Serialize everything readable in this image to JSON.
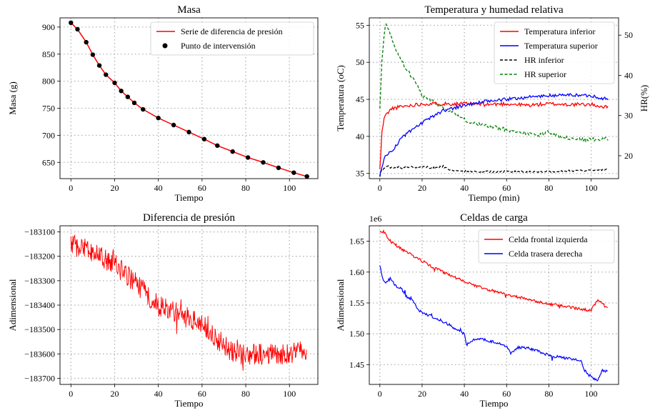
{
  "colors": {
    "red": "#ff0000",
    "blue": "#0000ff",
    "black": "#000000",
    "green": "#008000",
    "grid": "#b0b0b0"
  },
  "chart_data": [
    {
      "id": "masa",
      "type": "line",
      "title": "Masa",
      "xlabel": "Tiempo",
      "ylabel": "Masa (g)",
      "xlim": [
        -5,
        113
      ],
      "ylim": [
        620,
        917
      ],
      "xticks": [
        0,
        20,
        40,
        60,
        80,
        100
      ],
      "yticks": [
        650,
        700,
        750,
        800,
        850,
        900
      ],
      "ytick_labels": [
        "650",
        "700",
        "750",
        "800",
        "850",
        "900"
      ],
      "legend": [
        "Serie de diferencia de presión",
        "Punto de intervensión"
      ],
      "series": [
        {
          "name": "Serie de diferencia de presión",
          "kind": "line",
          "color": "#ff0000",
          "x": [
            0,
            3,
            7,
            10,
            13,
            16,
            20,
            23,
            26,
            29,
            33,
            40,
            47,
            54,
            61,
            67,
            74,
            81,
            88,
            95,
            102,
            108
          ],
          "y": [
            908,
            896,
            872,
            849,
            829,
            812,
            797,
            782,
            771,
            760,
            748,
            732,
            719,
            706,
            693,
            681,
            670,
            659,
            650,
            640,
            631,
            624
          ]
        },
        {
          "name": "Punto de intervensión",
          "kind": "scatter",
          "color": "#000000",
          "x": [
            0,
            3,
            7,
            10,
            13,
            16,
            20,
            23,
            26,
            29,
            33,
            40,
            47,
            54,
            61,
            67,
            74,
            81,
            88,
            95,
            102,
            108
          ],
          "y": [
            908,
            896,
            872,
            849,
            829,
            812,
            797,
            782,
            771,
            760,
            748,
            732,
            719,
            706,
            693,
            681,
            670,
            659,
            650,
            640,
            631,
            624
          ]
        }
      ]
    },
    {
      "id": "temp",
      "type": "line",
      "title": "Temperatura y humedad relativa",
      "xlabel": "Tiempo (min)",
      "ylabel": "Temperatura (oC)",
      "y2label": "HR(%)",
      "xlim": [
        -5,
        113
      ],
      "ylim": [
        34.3,
        56.0
      ],
      "y2lim": [
        14.3,
        54.3
      ],
      "xticks": [
        0,
        20,
        40,
        60,
        80,
        100
      ],
      "yticks": [
        35,
        40,
        45,
        50,
        55
      ],
      "ytick_labels": [
        "35",
        "40",
        "45",
        "50",
        "55"
      ],
      "y2ticks": [
        20,
        30,
        40,
        50
      ],
      "y2tick_labels": [
        "20",
        "30",
        "40",
        "50"
      ],
      "legend": [
        "Temperatura inferior",
        "Temperatura superior",
        "HR inferior",
        "HR superior"
      ],
      "series": [
        {
          "name": "Temperatura inferior",
          "axis": "left",
          "color": "#ff0000",
          "dash": false,
          "x": [
            0,
            1,
            2,
            4,
            6,
            10,
            15,
            20,
            25,
            30,
            40,
            50,
            60,
            70,
            80,
            90,
            100,
            108
          ],
          "y": [
            35.5,
            40.5,
            42.5,
            43.3,
            43.8,
            44.0,
            44.2,
            44.4,
            44.4,
            44.4,
            44.4,
            44.3,
            44.4,
            44.2,
            44.4,
            44.3,
            44.3,
            43.9
          ]
        },
        {
          "name": "Temperatura superior",
          "axis": "left",
          "color": "#0000ff",
          "dash": false,
          "x": [
            0,
            1,
            2,
            4,
            6,
            8,
            10,
            15,
            20,
            25,
            30,
            40,
            50,
            60,
            70,
            80,
            90,
            100,
            108
          ],
          "y": [
            34.6,
            36.0,
            37.0,
            37.7,
            38.2,
            38.8,
            39.8,
            40.8,
            41.8,
            42.7,
            43.5,
            44.2,
            44.7,
            45.0,
            45.3,
            45.5,
            45.6,
            45.5,
            45.0
          ]
        },
        {
          "name": "HR inferior",
          "axis": "right",
          "color": "#000000",
          "dash": true,
          "x": [
            0,
            1,
            2,
            4,
            6,
            8,
            10,
            14,
            18,
            22,
            26,
            30,
            32,
            34,
            40,
            50,
            60,
            70,
            80,
            90,
            100,
            108
          ],
          "y": [
            15,
            16.5,
            16.8,
            17.5,
            16.8,
            17.3,
            16.9,
            17.3,
            17.0,
            17.2,
            16.9,
            17.4,
            16.6,
            16.3,
            16.1,
            16.0,
            16.1,
            16.0,
            16.1,
            16.2,
            16.4,
            16.6
          ]
        },
        {
          "name": "HR superior",
          "axis": "right",
          "color": "#008000",
          "dash": true,
          "x": [
            0,
            1,
            2,
            3,
            5,
            8,
            12,
            16,
            20,
            25,
            30,
            35,
            40,
            45,
            50,
            55,
            60,
            65,
            70,
            75,
            80,
            85,
            90,
            95,
            100,
            105,
            108
          ],
          "y": [
            32,
            44,
            50,
            53,
            50,
            46,
            42,
            39,
            35,
            33.5,
            32,
            30.5,
            29,
            28,
            27.5,
            27,
            26.5,
            26,
            25.5,
            25,
            26,
            24.5,
            24.3,
            24,
            24,
            24.2,
            24.2
          ]
        }
      ]
    },
    {
      "id": "presion",
      "type": "line",
      "title": "Diferencia de presión",
      "xlabel": "Tiempo",
      "ylabel": "Adimensional",
      "xlim": [
        -5,
        113
      ],
      "ylim": [
        -183725,
        -183075
      ],
      "xticks": [
        0,
        20,
        40,
        60,
        80,
        100
      ],
      "yticks": [
        -183700,
        -183600,
        -183500,
        -183400,
        -183300,
        -183200,
        -183100
      ],
      "ytick_labels": [
        "−183700",
        "−183600",
        "−183500",
        "−183400",
        "−183300",
        "−183200",
        "−183100"
      ],
      "trend": {
        "x": [
          0,
          20,
          40,
          60,
          74,
          80,
          100,
          108
        ],
        "y": [
          -183150,
          -183230,
          -183400,
          -183480,
          -183600,
          -183600,
          -183600,
          -183590
        ]
      },
      "noise_amplitude": 45,
      "series": [
        {
          "name": "Diferencia de presión",
          "color": "#ff0000"
        }
      ]
    },
    {
      "id": "celdas",
      "type": "line",
      "title": "Celdas de carga",
      "xlabel": "Tiempo",
      "ylabel": "Adimensional",
      "offset_label": "1e6",
      "xlim": [
        -5,
        113
      ],
      "ylim": [
        1.418,
        1.675
      ],
      "xticks": [
        0,
        20,
        40,
        60,
        80,
        100
      ],
      "yticks": [
        1.45,
        1.5,
        1.55,
        1.6,
        1.65
      ],
      "ytick_labels": [
        "1.45",
        "1.50",
        "1.55",
        "1.60",
        "1.65"
      ],
      "legend": [
        "Celda frontal izquierda",
        "Celda trasera derecha"
      ],
      "series": [
        {
          "name": "Celda frontal izquierda",
          "color": "#ff0000",
          "x": [
            0,
            2,
            5,
            10,
            15,
            20,
            25,
            30,
            35,
            40,
            45,
            50,
            55,
            60,
            65,
            70,
            75,
            80,
            85,
            90,
            95,
            100,
            103,
            106,
            108
          ],
          "y": [
            1.665,
            1.665,
            1.65,
            1.638,
            1.628,
            1.618,
            1.608,
            1.6,
            1.592,
            1.585,
            1.578,
            1.573,
            1.568,
            1.564,
            1.56,
            1.556,
            1.552,
            1.548,
            1.546,
            1.543,
            1.54,
            1.538,
            1.555,
            1.548,
            1.543
          ]
        },
        {
          "name": "Celda trasera derecha",
          "color": "#0000ff",
          "x": [
            0,
            1,
            3,
            5,
            8,
            10,
            12,
            15,
            18,
            20,
            25,
            30,
            35,
            40,
            41,
            45,
            50,
            55,
            60,
            62,
            65,
            70,
            75,
            80,
            85,
            90,
            95,
            97,
            100,
            103,
            105,
            108
          ],
          "y": [
            1.612,
            1.592,
            1.582,
            1.59,
            1.575,
            1.575,
            1.562,
            1.555,
            1.54,
            1.535,
            1.527,
            1.52,
            1.51,
            1.5,
            1.482,
            1.492,
            1.49,
            1.486,
            1.48,
            1.468,
            1.478,
            1.477,
            1.472,
            1.465,
            1.462,
            1.46,
            1.457,
            1.44,
            1.43,
            1.424,
            1.44,
            1.44
          ]
        }
      ]
    }
  ]
}
